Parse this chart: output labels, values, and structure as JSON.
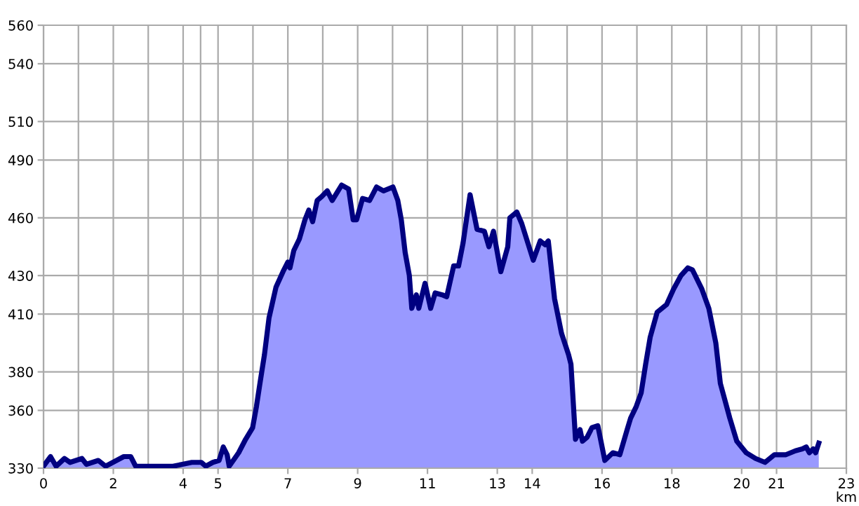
{
  "chart_data": {
    "type": "area",
    "xlabel": "km",
    "x": [
      0,
      0.2,
      0.36,
      0.6,
      0.76,
      1.1,
      1.23,
      1.57,
      1.78,
      2.3,
      2.5,
      2.64,
      3.71,
      3.98,
      4.25,
      4.52,
      4.65,
      4.85,
      5.03,
      5.15,
      5.26,
      5.32,
      5.59,
      5.79,
      5.99,
      6.1,
      6.2,
      6.33,
      6.46,
      6.66,
      6.86,
      7.0,
      7.06,
      7.17,
      7.33,
      7.49,
      7.6,
      7.71,
      7.84,
      7.97,
      8.13,
      8.27,
      8.54,
      8.74,
      8.87,
      8.97,
      9.14,
      9.34,
      9.54,
      9.74,
      10.01,
      10.15,
      10.25,
      10.36,
      10.48,
      10.55,
      10.68,
      10.75,
      10.93,
      11.09,
      11.22,
      11.42,
      11.55,
      11.75,
      11.89,
      12.02,
      12.22,
      12.42,
      12.63,
      12.76,
      12.89,
      13.1,
      13.3,
      13.36,
      13.56,
      13.7,
      14.03,
      14.23,
      14.37,
      14.46,
      14.64,
      14.84,
      15.04,
      15.11,
      15.24,
      15.37,
      15.44,
      15.57,
      15.71,
      15.88,
      16.08,
      16.31,
      16.51,
      16.72,
      16.82,
      16.98,
      17.12,
      17.25,
      17.38,
      17.58,
      17.85,
      18.05,
      18.26,
      18.46,
      18.59,
      18.86,
      19.06,
      19.26,
      19.39,
      19.66,
      19.86,
      20.13,
      20.4,
      20.67,
      20.94,
      21.27,
      21.54,
      21.74,
      21.85,
      21.94,
      22.05,
      22.12,
      22.21
    ],
    "series": [
      {
        "color": "#9999ff",
        "values": [
          331,
          336,
          331,
          335,
          333,
          335,
          332,
          334,
          331,
          336,
          336,
          331,
          331,
          332,
          333,
          333,
          331,
          333,
          334,
          341,
          337,
          331,
          338,
          345,
          351,
          362,
          374,
          389,
          408,
          424,
          432,
          437,
          434,
          443,
          449,
          459,
          464,
          458,
          469,
          471,
          474,
          469,
          477,
          475,
          459,
          459,
          470,
          469,
          476,
          474,
          476,
          469,
          459,
          442,
          430,
          413,
          420,
          413,
          426,
          413,
          421,
          420,
          419,
          435,
          435,
          447,
          472,
          454,
          453,
          445,
          453,
          432,
          445,
          460,
          463,
          457,
          438,
          448,
          446,
          448,
          418,
          400,
          389,
          384,
          345,
          350,
          344,
          346,
          351,
          352,
          334,
          338,
          337,
          350,
          356,
          362,
          369,
          384,
          398,
          411,
          415,
          423,
          430,
          434,
          433,
          423,
          413,
          395,
          374,
          356,
          344,
          338,
          335,
          333,
          337,
          337,
          339,
          340,
          341,
          338,
          340,
          338,
          343
        ]
      }
    ],
    "xlim": [
      0,
      23
    ],
    "ylim": [
      330,
      560
    ],
    "xticks": [
      0,
      2,
      4,
      5,
      7,
      9,
      11,
      13,
      14,
      16,
      18,
      20,
      21,
      23
    ],
    "yticks": [
      330,
      360,
      380,
      410,
      430,
      460,
      490,
      510,
      540,
      560
    ],
    "grid": true
  }
}
